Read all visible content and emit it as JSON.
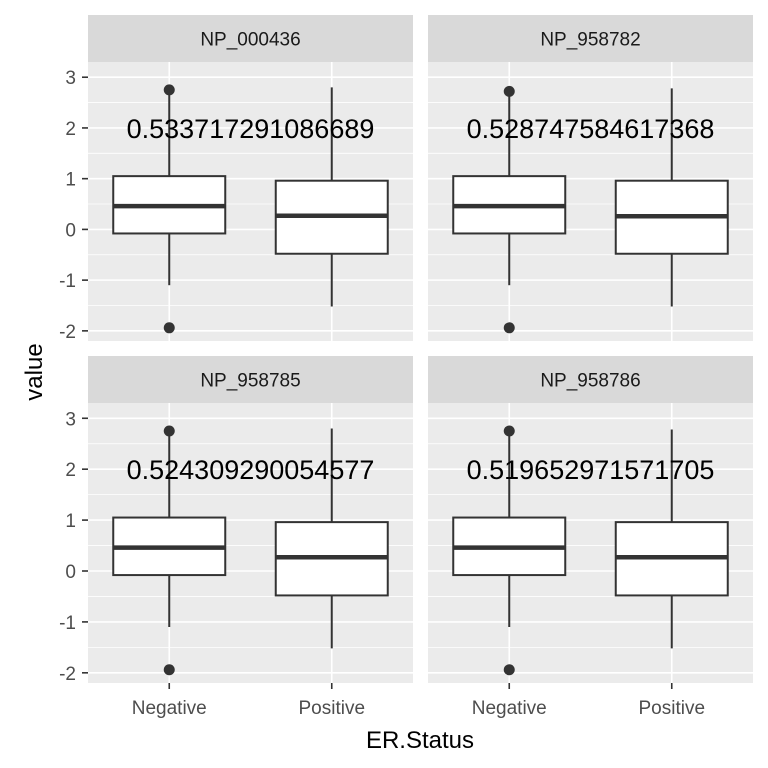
{
  "chart_data": {
    "type": "boxplot",
    "xlabel": "ER.Status",
    "ylabel": "value",
    "categories": [
      "Negative",
      "Positive"
    ],
    "ylim": [
      -2.2,
      3.3
    ],
    "y_ticks": [
      -2,
      -1,
      0,
      1,
      2,
      3
    ],
    "y_tick_labels": [
      "-2",
      "-1",
      "0",
      "1",
      "2",
      "3"
    ],
    "grid": true,
    "panels": [
      {
        "strip": "NP_000436",
        "annotation": "0.533717291086689",
        "boxes": [
          {
            "category": "Negative",
            "lower_whisker": -1.1,
            "q1": -0.08,
            "median": 0.46,
            "q3": 1.05,
            "upper_whisker": 2.75,
            "outliers": [
              2.75,
              -1.94
            ]
          },
          {
            "category": "Positive",
            "lower_whisker": -1.52,
            "q1": -0.48,
            "median": 0.27,
            "q3": 0.96,
            "upper_whisker": 2.8,
            "outliers": []
          }
        ]
      },
      {
        "strip": "NP_958782",
        "annotation": "0.528747584617368",
        "boxes": [
          {
            "category": "Negative",
            "lower_whisker": -1.1,
            "q1": -0.08,
            "median": 0.46,
            "q3": 1.05,
            "upper_whisker": 2.72,
            "outliers": [
              2.72,
              -1.94
            ]
          },
          {
            "category": "Positive",
            "lower_whisker": -1.52,
            "q1": -0.48,
            "median": 0.26,
            "q3": 0.96,
            "upper_whisker": 2.78,
            "outliers": []
          }
        ]
      },
      {
        "strip": "NP_958785",
        "annotation": "0.524309290054577",
        "boxes": [
          {
            "category": "Negative",
            "lower_whisker": -1.1,
            "q1": -0.08,
            "median": 0.46,
            "q3": 1.05,
            "upper_whisker": 2.75,
            "outliers": [
              2.75,
              -1.94
            ]
          },
          {
            "category": "Positive",
            "lower_whisker": -1.52,
            "q1": -0.48,
            "median": 0.27,
            "q3": 0.96,
            "upper_whisker": 2.8,
            "outliers": []
          }
        ]
      },
      {
        "strip": "NP_958786",
        "annotation": "0.519652971571705",
        "boxes": [
          {
            "category": "Negative",
            "lower_whisker": -1.1,
            "q1": -0.08,
            "median": 0.46,
            "q3": 1.05,
            "upper_whisker": 2.75,
            "outliers": [
              2.75,
              -1.94
            ]
          },
          {
            "category": "Positive",
            "lower_whisker": -1.52,
            "q1": -0.48,
            "median": 0.27,
            "q3": 0.96,
            "upper_whisker": 2.78,
            "outliers": []
          }
        ]
      }
    ]
  }
}
